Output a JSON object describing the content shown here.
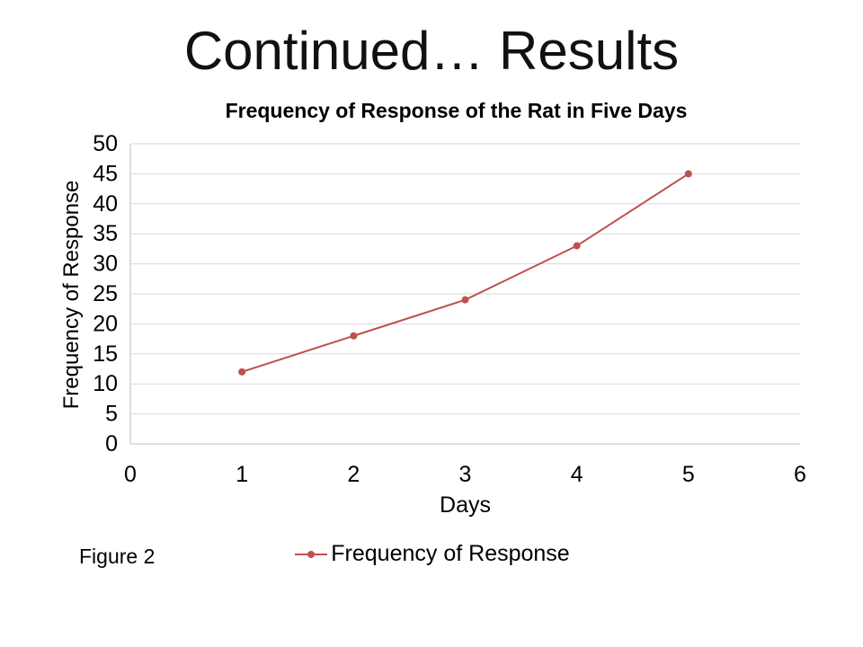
{
  "slide": {
    "title": "Continued… Results",
    "figure_caption": "Figure 2"
  },
  "chart_data": {
    "type": "line",
    "title": "Frequency of Response of the Rat in Five Days",
    "xlabel": "Days",
    "ylabel": "Frequency of Response",
    "x": [
      1,
      2,
      3,
      4,
      5
    ],
    "series": [
      {
        "name": "Frequency of Response",
        "values": [
          12,
          18,
          24,
          33,
          45
        ],
        "color": "#c0504d"
      }
    ],
    "xlim": [
      0,
      6
    ],
    "ylim": [
      0,
      50
    ],
    "x_ticks": [
      0,
      1,
      2,
      3,
      4,
      5,
      6
    ],
    "y_ticks": [
      0,
      5,
      10,
      15,
      20,
      25,
      30,
      35,
      40,
      45,
      50
    ],
    "grid": "horizontal",
    "grid_color": "#d9d9d9",
    "axis_color": "#bfbfbf",
    "legend_position": "bottom"
  }
}
